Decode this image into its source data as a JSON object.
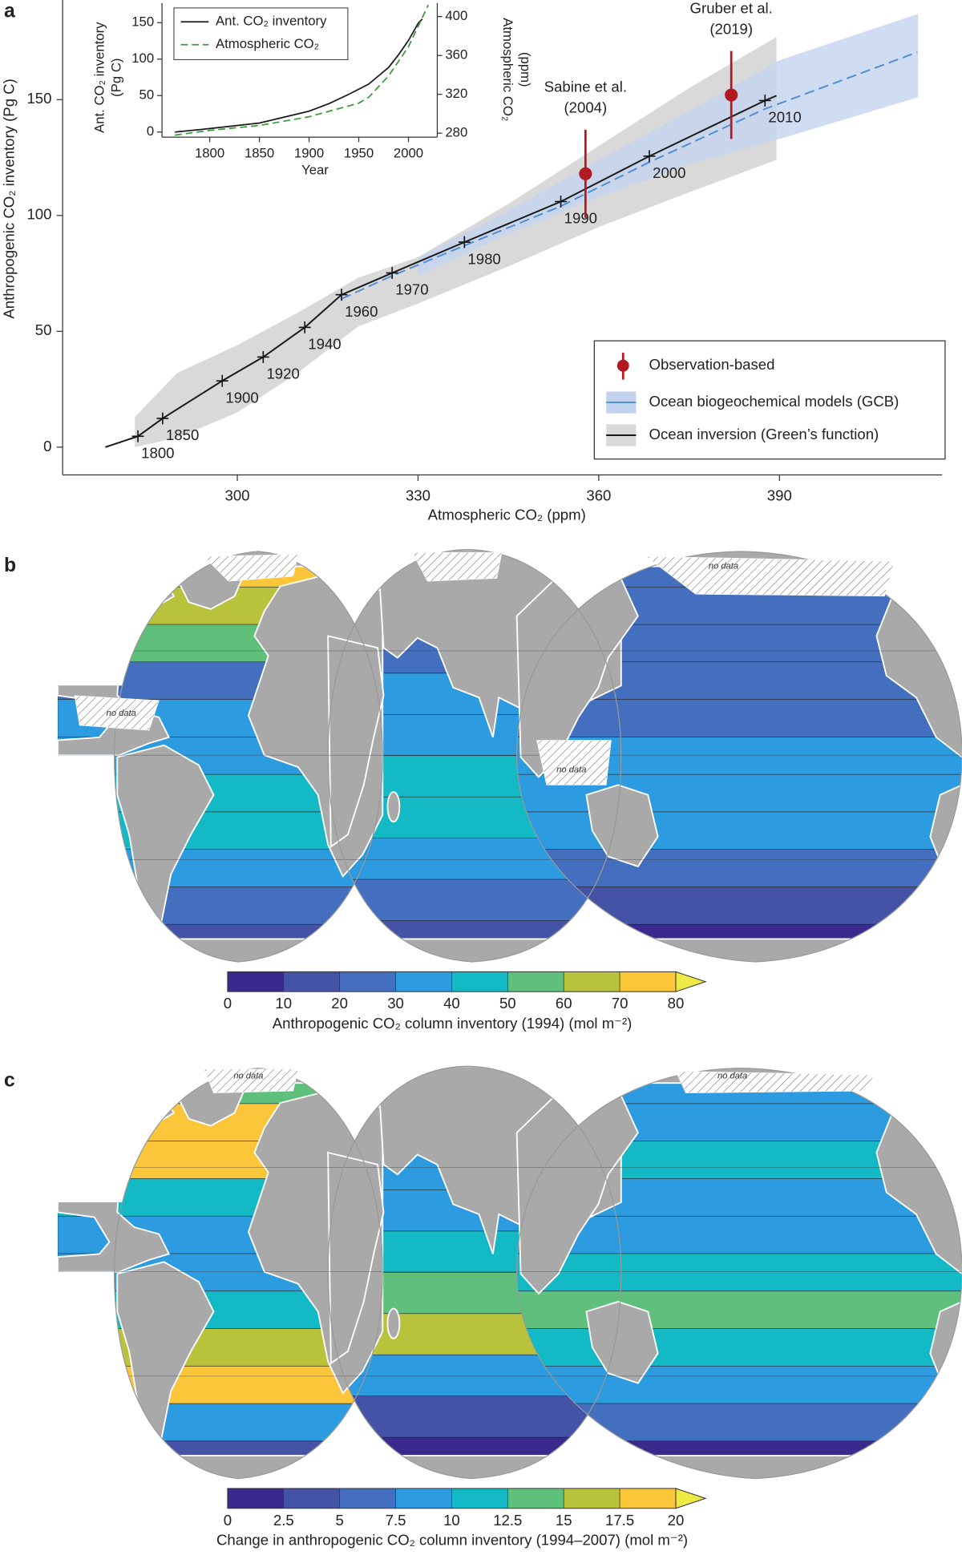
{
  "chart_data": [
    {
      "type": "line",
      "panel": "a",
      "xlabel": "Atmospheric CO₂ (ppm)",
      "ylabel": "Anthropogenic CO₂ inventory (Pg C)",
      "xlim": [
        271,
        417
      ],
      "ylim": [
        -12,
        193
      ],
      "xticks": [
        300,
        330,
        360,
        390
      ],
      "yticks": [
        0,
        50,
        100,
        150
      ],
      "series": [
        {
          "name": "Ocean inversion (Green’s function)",
          "color": "#1a1a1a",
          "x": [
            278.1,
            283.5,
            287.6,
            297.5,
            304.3,
            311.2,
            317.3,
            325.7,
            337.7,
            353.7,
            368.4,
            387.6,
            389.5
          ],
          "values": [
            0,
            4.7,
            12.4,
            28.6,
            38.9,
            51.7,
            65.8,
            75.2,
            88.5,
            106,
            125.6,
            149.6,
            151.7
          ],
          "band": {
            "color": "#d9d9d9",
            "x": [
              283,
              290,
              300,
              310,
              320,
              330,
              345,
              360,
              375,
              389.5
            ],
            "upper": [
              13,
              32,
              44,
              58,
              73,
              82,
              105,
              130,
              155,
              177
            ],
            "lower": [
              0,
              4,
              15,
              32,
              52,
              62,
              78,
              95,
              110,
              124
            ]
          }
        },
        {
          "name": "Ocean biogeochemical models (GCB)",
          "color": "#4f8fd6",
          "dash": true,
          "x": [
            317.3,
            325.7,
            337.7,
            353.7,
            368.4,
            387.6,
            400,
            412.9
          ],
          "values": [
            64,
            74,
            87,
            104,
            123,
            146,
            158,
            170.5
          ],
          "band": {
            "color": "#c3d3ee",
            "x": [
              330,
              345,
              360,
              375,
              390,
              413
            ],
            "upper": [
              82,
              102,
              124,
              145,
              167,
              187
            ],
            "lower": [
              74,
              92,
              108,
              122,
              133,
              151
            ]
          }
        }
      ],
      "observations": {
        "name": "Observation-based",
        "color": "#b3191e",
        "points": [
          {
            "label": [
              "Sabine et al.",
              "(2004)"
            ],
            "x": 357.8,
            "y": 118,
            "error": 19
          },
          {
            "label": [
              "Gruber et al.",
              "(2019)"
            ],
            "x": 382,
            "y": 152,
            "error": 19
          }
        ]
      },
      "annotations": [
        {
          "text": "1800",
          "x": 283.5,
          "y": 4.7
        },
        {
          "text": "1850",
          "x": 287.6,
          "y": 12.4
        },
        {
          "text": "1900",
          "x": 297.5,
          "y": 28.6
        },
        {
          "text": "1920",
          "x": 304.3,
          "y": 38.9
        },
        {
          "text": "1940",
          "x": 311.2,
          "y": 51.7
        },
        {
          "text": "1960",
          "x": 317.3,
          "y": 65.8
        },
        {
          "text": "1970",
          "x": 325.7,
          "y": 75.2
        },
        {
          "text": "1980",
          "x": 337.7,
          "y": 88.5
        },
        {
          "text": "1990",
          "x": 353.7,
          "y": 106
        },
        {
          "text": "2000",
          "x": 368.4,
          "y": 125.6
        },
        {
          "text": "2010",
          "x": 387.6,
          "y": 149.6
        }
      ]
    },
    {
      "type": "line",
      "xlabel": "Year",
      "ylabel": [
        "Ant. CO₂ inventory",
        "(Pg C)"
      ],
      "y2label": [
        "Atmospheric CO₂",
        "(ppm)"
      ],
      "xlim": [
        1752,
        2029
      ],
      "ylim": [
        -7,
        177
      ],
      "y2lim": [
        276,
        414
      ],
      "xticks": [
        1800,
        1850,
        1900,
        1950,
        2000
      ],
      "yticks": [
        0,
        50,
        100,
        150
      ],
      "y2ticks": [
        280,
        320,
        360,
        400
      ],
      "series": [
        {
          "name": "Ant. CO₂ inventory",
          "color": "#1a1a1a",
          "x": [
            1765,
            1800,
            1850,
            1900,
            1920,
            1940,
            1960,
            1980,
            1990,
            2000,
            2010,
            2014
          ],
          "values": [
            0,
            4.7,
            12.4,
            28.6,
            38.9,
            51.7,
            65.8,
            88.5,
            106,
            125.6,
            149.6,
            155
          ]
        },
        {
          "name": "Atmospheric CO₂",
          "color": "#3a9a3a",
          "dash": true,
          "axis": "y2",
          "x": [
            1765,
            1800,
            1850,
            1900,
            1950,
            1960,
            1980,
            2000,
            2020
          ],
          "values": [
            278,
            283,
            288,
            297,
            311,
            317,
            339,
            369,
            412
          ]
        }
      ]
    },
    {
      "type": "map",
      "panel": "b",
      "colorbar": {
        "title": "Anthropogenic CO₂ column inventory (1994)  (mol m⁻²)",
        "ticks": [
          0,
          10,
          20,
          30,
          40,
          50,
          60,
          70,
          80
        ],
        "colors": [
          "#3b2a8e",
          "#4453a6",
          "#446fbe",
          "#2d9be0",
          "#14b9c6",
          "#5ec07a",
          "#b8c23b",
          "#fcc63b"
        ],
        "extend_color": "#eeea45"
      },
      "zones": [
        [
          75,
          65,
          55,
          25,
          35,
          38,
          45,
          45,
          35,
          22,
          12
        ],
        [
          15,
          22,
          25,
          33,
          35,
          42,
          45,
          38,
          25,
          12
        ],
        [
          22,
          20,
          20,
          22,
          25,
          32,
          35,
          30,
          25,
          18,
          8
        ]
      ],
      "no_data": [
        "no data",
        "no data",
        "no data"
      ]
    },
    {
      "type": "map",
      "panel": "c",
      "colorbar": {
        "title": "Change in anthropogenic CO₂ column inventory (1994–2007)  (mol m⁻²)",
        "ticks": [
          0,
          2.5,
          5,
          7.5,
          10,
          12.5,
          15,
          17.5,
          20
        ],
        "colors": [
          "#3b2a8e",
          "#4453a6",
          "#446fbe",
          "#2d9be0",
          "#14b9c6",
          "#5ec07a",
          "#b8c23b",
          "#fcc63b"
        ],
        "extend_color": "#eeea45"
      },
      "zones": [
        [
          14,
          18,
          18,
          11,
          9,
          9,
          11,
          16,
          18,
          9,
          3
        ],
        [
          6,
          7,
          8,
          9,
          11,
          13,
          15,
          9,
          4,
          2
        ],
        [
          8,
          9,
          10,
          9,
          9,
          11,
          13,
          12,
          9,
          5,
          2
        ]
      ],
      "no_data": [
        "no data",
        "no data"
      ]
    }
  ]
}
